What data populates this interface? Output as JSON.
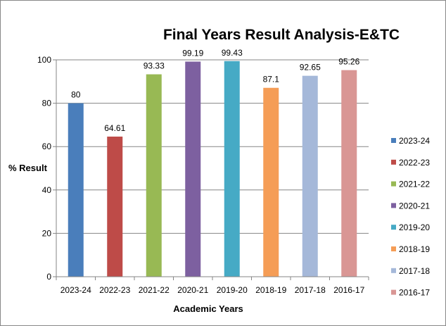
{
  "chart_data": {
    "type": "bar",
    "title": "Final Years Result Analysis-E&TC",
    "xlabel": "Academic Years",
    "ylabel": "% Result",
    "ylim": [
      0,
      100
    ],
    "yticks": [
      0,
      20,
      40,
      60,
      80,
      100
    ],
    "grid": true,
    "legend": "right",
    "categories": [
      "2023-24",
      "2022-23",
      "2021-22",
      "2020-21",
      "2019-20",
      "2018-19",
      "2017-18",
      "2016-17"
    ],
    "values": [
      80,
      64.61,
      93.33,
      99.19,
      99.43,
      87.1,
      92.65,
      95.26
    ],
    "data_labels": [
      "80",
      "64.61",
      "93.33",
      "99.19",
      "99.43",
      "87.1",
      "92.65",
      "95.26"
    ],
    "colors": [
      "#4A7EBB",
      "#BE4B48",
      "#98B954",
      "#7D60A0",
      "#46AAC5",
      "#F59D56",
      "#A5B8D9",
      "#D99694"
    ]
  }
}
